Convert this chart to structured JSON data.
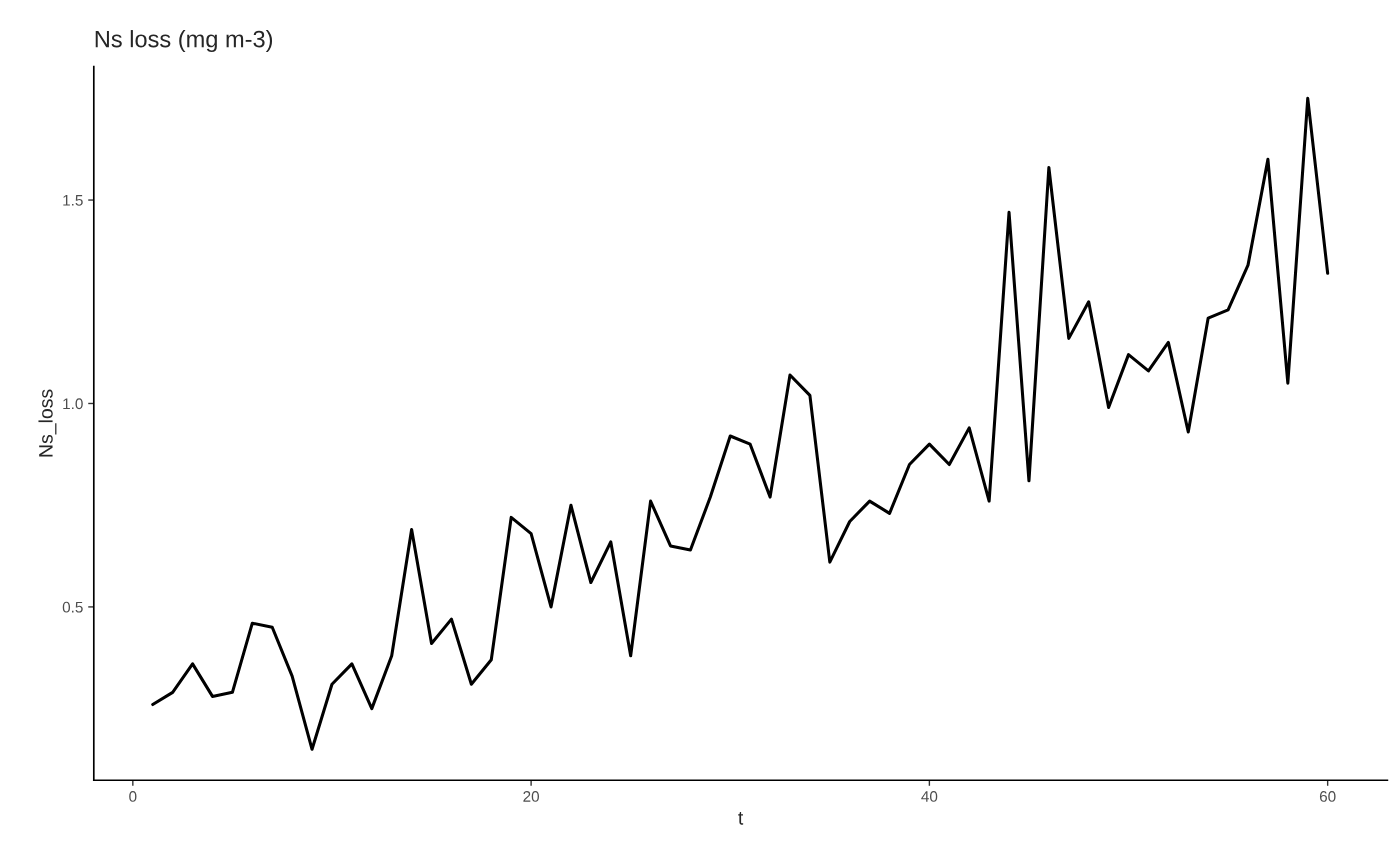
{
  "chart_data": {
    "type": "line",
    "title": "Ns loss (mg m-3)",
    "xlabel": "t",
    "ylabel": "Ns_loss",
    "x": [
      1,
      2,
      3,
      4,
      5,
      6,
      7,
      8,
      9,
      10,
      11,
      12,
      13,
      14,
      15,
      16,
      17,
      18,
      19,
      20,
      21,
      22,
      23,
      24,
      25,
      26,
      27,
      28,
      29,
      30,
      31,
      32,
      33,
      34,
      35,
      36,
      37,
      38,
      39,
      40,
      41,
      42,
      43,
      44,
      45,
      46,
      47,
      48,
      49,
      50,
      51,
      52,
      53,
      54,
      55,
      56,
      57,
      58,
      59,
      60
    ],
    "series": [
      {
        "color": "#000000",
        "values": [
          0.26,
          0.29,
          0.36,
          0.28,
          0.29,
          0.46,
          0.45,
          0.33,
          0.15,
          0.31,
          0.36,
          0.25,
          0.38,
          0.69,
          0.41,
          0.47,
          0.31,
          0.37,
          0.72,
          0.68,
          0.5,
          0.75,
          0.56,
          0.66,
          0.38,
          0.76,
          0.65,
          0.64,
          0.77,
          0.92,
          0.9,
          0.77,
          1.07,
          1.02,
          0.61,
          0.71,
          0.76,
          0.73,
          0.85,
          0.9,
          0.85,
          0.94,
          0.76,
          1.47,
          0.81,
          1.58,
          1.16,
          1.25,
          0.99,
          1.12,
          1.08,
          1.15,
          0.93,
          1.21,
          1.23,
          1.34,
          1.6,
          1.05,
          1.75,
          1.32
        ]
      }
    ],
    "xlim": [
      -1.96,
      63.0
    ],
    "xticks": [
      0,
      20,
      40,
      60
    ],
    "ylim": [
      0.074,
      1.828
    ],
    "yticks": [
      0.5,
      {
        "value": 1.0,
        "label": "1.0"
      },
      1.5
    ],
    "grid": false,
    "legend": false,
    "marker": "none",
    "line_style": "solid"
  }
}
